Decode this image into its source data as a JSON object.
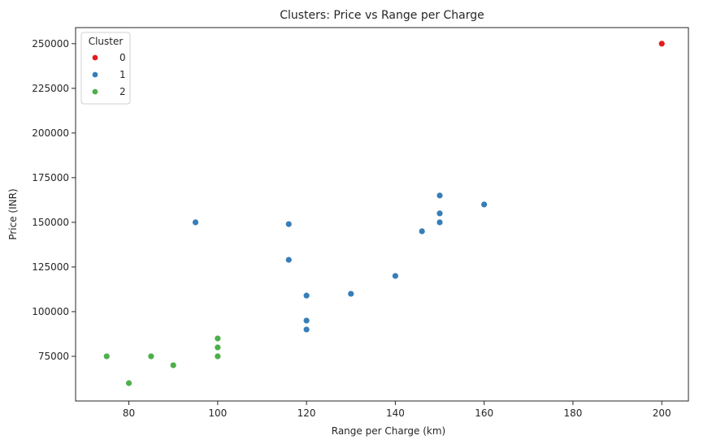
{
  "chart_data": {
    "type": "scatter",
    "title": "Clusters: Price vs Range per Charge",
    "xlabel": "Range per Charge (km)",
    "ylabel": "Price (INR)",
    "xlim": [
      68,
      206
    ],
    "ylim": [
      50000,
      259000
    ],
    "xticks": [
      80,
      100,
      120,
      140,
      160,
      180,
      200
    ],
    "yticks": [
      75000,
      100000,
      125000,
      150000,
      175000,
      200000,
      225000,
      250000
    ],
    "grid": false,
    "legend": {
      "title": "Cluster",
      "placement": "top-left"
    },
    "series": [
      {
        "name": "0",
        "color": "#e41a1c",
        "points": [
          {
            "x": 200,
            "y": 250000
          }
        ]
      },
      {
        "name": "1",
        "color": "#377eb8",
        "points": [
          {
            "x": 95,
            "y": 150000
          },
          {
            "x": 116,
            "y": 149000
          },
          {
            "x": 116,
            "y": 129000
          },
          {
            "x": 120,
            "y": 109000
          },
          {
            "x": 120,
            "y": 95000
          },
          {
            "x": 120,
            "y": 90000
          },
          {
            "x": 130,
            "y": 110000
          },
          {
            "x": 140,
            "y": 120000
          },
          {
            "x": 146,
            "y": 145000
          },
          {
            "x": 150,
            "y": 165000
          },
          {
            "x": 150,
            "y": 155000
          },
          {
            "x": 150,
            "y": 150000
          },
          {
            "x": 160,
            "y": 160000
          }
        ]
      },
      {
        "name": "2",
        "color": "#4daf4a",
        "points": [
          {
            "x": 75,
            "y": 75000
          },
          {
            "x": 80,
            "y": 60000
          },
          {
            "x": 85,
            "y": 75000
          },
          {
            "x": 90,
            "y": 70000
          },
          {
            "x": 100,
            "y": 85000
          },
          {
            "x": 100,
            "y": 80000
          },
          {
            "x": 100,
            "y": 75000
          }
        ]
      }
    ]
  }
}
